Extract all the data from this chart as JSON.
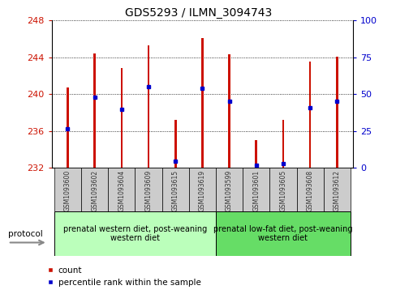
{
  "title": "GDS5293 / ILMN_3094743",
  "samples": [
    "GSM1093600",
    "GSM1093602",
    "GSM1093604",
    "GSM1093609",
    "GSM1093615",
    "GSM1093619",
    "GSM1093599",
    "GSM1093601",
    "GSM1093605",
    "GSM1093608",
    "GSM1093612"
  ],
  "bar_bottoms": [
    232,
    232,
    232,
    232,
    232,
    232,
    232,
    232,
    232,
    232,
    232
  ],
  "bar_tops": [
    240.7,
    244.4,
    242.8,
    245.3,
    237.2,
    246.1,
    244.3,
    235.0,
    237.2,
    243.5,
    244.1
  ],
  "percentile_values": [
    236.2,
    239.7,
    238.3,
    240.8,
    232.7,
    240.6,
    239.2,
    232.3,
    232.4,
    238.5,
    239.2
  ],
  "ylim_left": [
    232,
    248
  ],
  "yticks_left": [
    232,
    236,
    240,
    244,
    248
  ],
  "ylim_right": [
    0,
    100
  ],
  "yticks_right": [
    0,
    25,
    50,
    75,
    100
  ],
  "bar_color": "#cc1100",
  "percentile_color": "#0000cc",
  "group1_indices": [
    0,
    1,
    2,
    3,
    4,
    5
  ],
  "group2_indices": [
    6,
    7,
    8,
    9,
    10
  ],
  "group1_label": "prenatal western diet, post-weaning\nwestern diet",
  "group2_label": "prenatal low-fat diet, post-weaning\nwestern diet",
  "group1_color": "#bbffbb",
  "group2_color": "#66dd66",
  "protocol_label": "protocol",
  "legend_count_label": "count",
  "legend_percentile_label": "percentile rank within the sample",
  "left_tick_color": "#cc1100",
  "right_tick_color": "#0000cc",
  "sample_box_color": "#cccccc",
  "bar_width": 0.08
}
